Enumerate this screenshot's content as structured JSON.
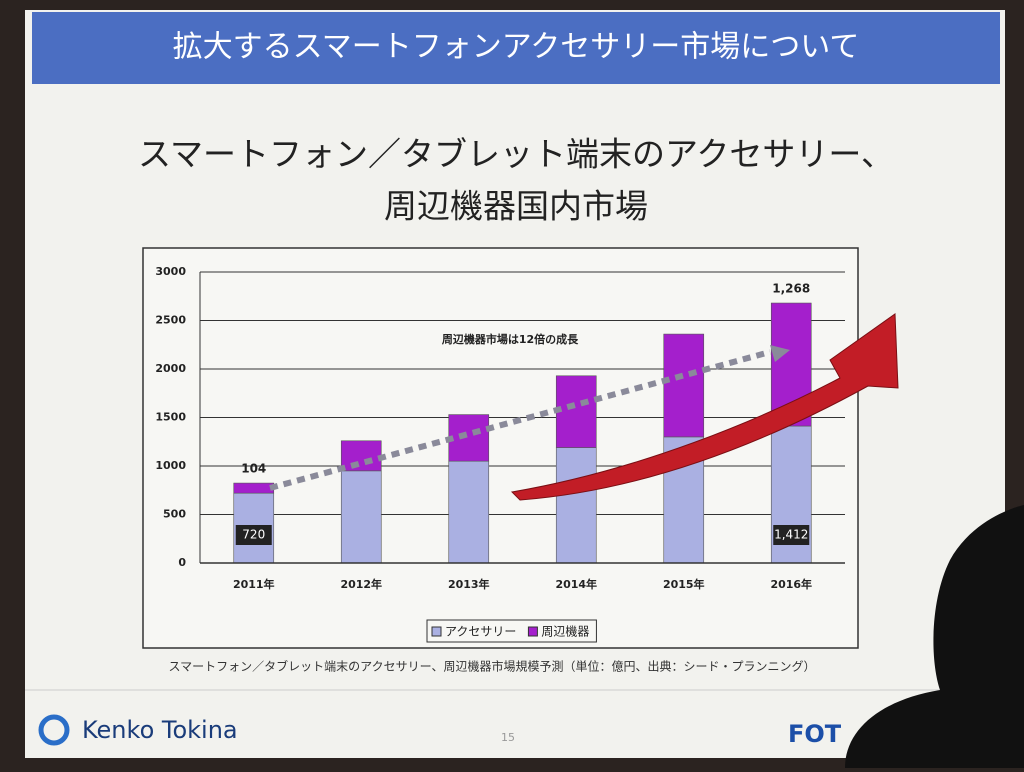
{
  "header": {
    "title": "拡大するスマートフォンアクセサリー市場について"
  },
  "chart_data": {
    "type": "bar",
    "stacked": true,
    "title": [
      "スマートフォン／タブレット端末のアクセサリー、",
      "周辺機器国内市場"
    ],
    "annotation": "周辺機器市場は12倍の成長",
    "caption": "スマートフォン／タブレット端末のアクセサリー、周辺機器市場規模予測（単位：億円、出典：シード・プランニング）",
    "categories": [
      "2011年",
      "2012年",
      "2013年",
      "2014年",
      "2015年",
      "2016年"
    ],
    "series": [
      {
        "name": "アクセサリー",
        "color": "#aab0e2",
        "values": [
          720,
          950,
          1050,
          1190,
          1300,
          1412
        ],
        "value_labels": [
          "720",
          null,
          null,
          null,
          null,
          "1,412"
        ]
      },
      {
        "name": "周辺機器",
        "color": "#a41fcc",
        "values": [
          104,
          310,
          480,
          740,
          1060,
          1268
        ],
        "value_labels": [
          "104",
          null,
          null,
          null,
          null,
          "1,268"
        ]
      }
    ],
    "ylim": [
      0,
      3000
    ],
    "yticks": [
      0,
      500,
      1000,
      1500,
      2000,
      2500,
      3000
    ],
    "grid": true,
    "legend": "bottom"
  },
  "footer": {
    "brand": "Kenko Tokina",
    "page": "15",
    "logo": "FOT"
  }
}
